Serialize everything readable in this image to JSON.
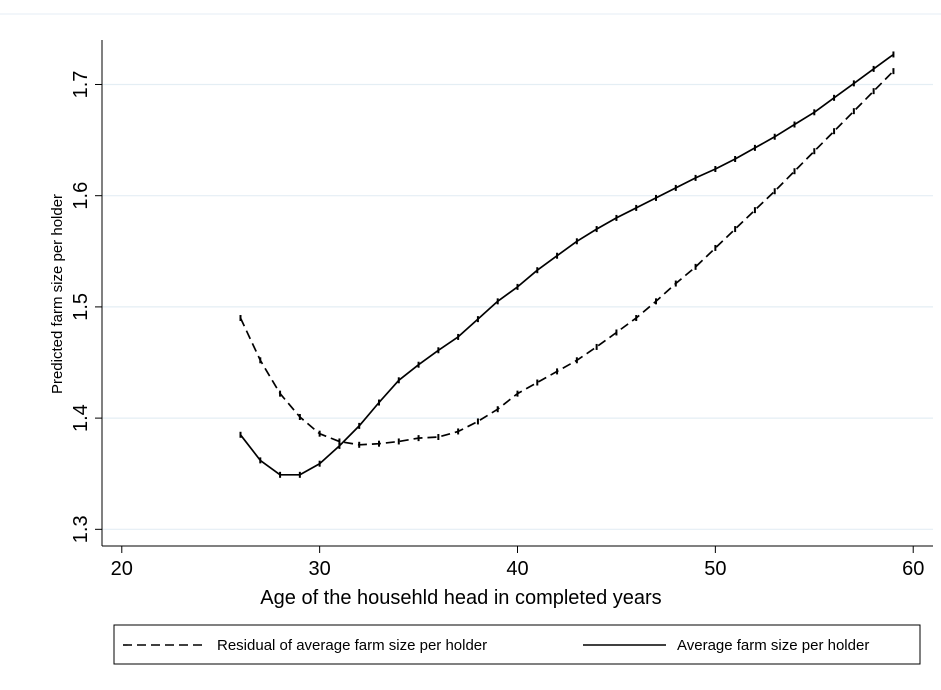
{
  "chart_data": {
    "type": "line",
    "title": "",
    "xlabel": "Age of the househld head in completed years",
    "ylabel": "Predicted farm size per holder",
    "xlim": [
      19,
      61
    ],
    "ylim": [
      1.285,
      1.74
    ],
    "x_ticks": [
      {
        "value": 20,
        "label": "20"
      },
      {
        "value": 30,
        "label": "30"
      },
      {
        "value": 40,
        "label": "40"
      },
      {
        "value": 50,
        "label": "50"
      },
      {
        "value": 60,
        "label": "60"
      }
    ],
    "y_ticks": [
      {
        "value": 1.3,
        "label": "1.3"
      },
      {
        "value": 1.4,
        "label": "1.4"
      },
      {
        "value": 1.5,
        "label": "1.5"
      },
      {
        "value": 1.6,
        "label": "1.6"
      },
      {
        "value": 1.7,
        "label": "1.7"
      }
    ],
    "grid": "horizontal",
    "legend_position": "bottom",
    "series": [
      {
        "name": "Residual of average farm size per holder",
        "style": "dashed",
        "color": "#000000",
        "x": [
          26,
          27,
          28,
          29,
          30,
          31,
          32,
          33,
          34,
          35,
          36,
          37,
          38,
          39,
          40,
          41,
          42,
          43,
          44,
          45,
          46,
          47,
          48,
          49,
          50,
          51,
          52,
          53,
          54,
          55,
          56,
          57,
          58,
          59
        ],
        "y": [
          1.49,
          1.452,
          1.422,
          1.401,
          1.386,
          1.379,
          1.376,
          1.377,
          1.379,
          1.382,
          1.383,
          1.388,
          1.397,
          1.408,
          1.422,
          1.432,
          1.442,
          1.452,
          1.464,
          1.477,
          1.49,
          1.505,
          1.521,
          1.536,
          1.553,
          1.57,
          1.587,
          1.604,
          1.622,
          1.64,
          1.658,
          1.676,
          1.694,
          1.712
        ]
      },
      {
        "name": "Average farm size per holder",
        "style": "solid",
        "color": "#000000",
        "x": [
          26,
          27,
          28,
          29,
          30,
          31,
          32,
          33,
          34,
          35,
          36,
          37,
          38,
          39,
          40,
          41,
          42,
          43,
          44,
          45,
          46,
          47,
          48,
          49,
          50,
          51,
          52,
          53,
          54,
          55,
          56,
          57,
          58,
          59
        ],
        "y": [
          1.385,
          1.362,
          1.349,
          1.349,
          1.359,
          1.375,
          1.393,
          1.414,
          1.434,
          1.448,
          1.461,
          1.473,
          1.489,
          1.505,
          1.518,
          1.533,
          1.546,
          1.559,
          1.57,
          1.58,
          1.589,
          1.598,
          1.607,
          1.616,
          1.624,
          1.633,
          1.643,
          1.653,
          1.664,
          1.675,
          1.688,
          1.701,
          1.714,
          1.727
        ]
      }
    ]
  }
}
